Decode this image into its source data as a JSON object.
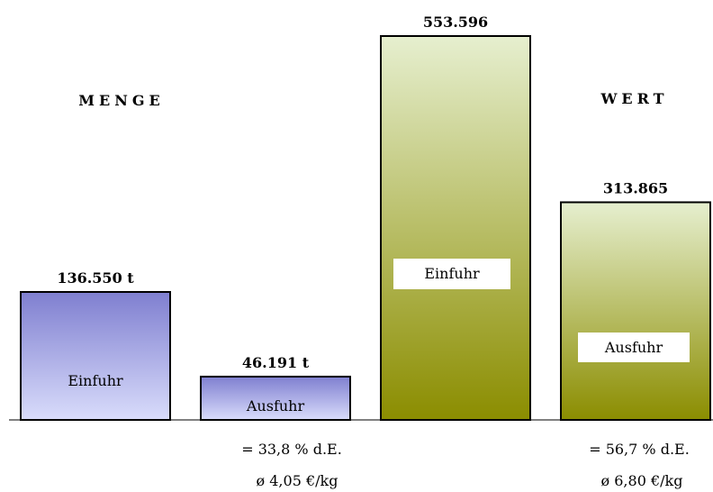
{
  "chart_data": {
    "type": "bar",
    "groups": [
      {
        "title": "MENGE",
        "bars": [
          {
            "category": "Einfuhr",
            "value": 136550,
            "value_label": "136.550 t",
            "color_top": "#7f7fd0",
            "color_bottom": "#d9dcfb"
          },
          {
            "category": "Ausfuhr",
            "value": 46191,
            "value_label": "46.191 t",
            "color_top": "#7f7fd0",
            "color_bottom": "#d9dcfb"
          }
        ],
        "notes": [
          "= 33,8 % d.E.",
          "ø 4,05 €/kg"
        ]
      },
      {
        "title": "WERT",
        "bars": [
          {
            "category": "Einfuhr",
            "value": 553596,
            "value_label": "553.596",
            "color_top": "#e6efcf",
            "color_bottom": "#8b8d00"
          },
          {
            "category": "Ausfuhr",
            "value": 313865,
            "value_label": "313.865",
            "color_top": "#e6efcf",
            "color_bottom": "#8b8d00"
          }
        ],
        "notes": [
          "=  56,7 % d.E.",
          "ø 6,80 €/kg"
        ]
      }
    ],
    "legend": "none",
    "grid": false
  }
}
